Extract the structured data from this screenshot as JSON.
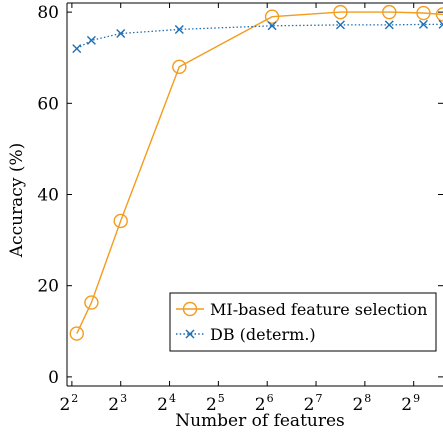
{
  "chart_data": {
    "type": "line",
    "xlabel": "Number of features",
    "ylabel": "Accuracy (%)",
    "x_scale": "log2",
    "x_tick_base": "2",
    "x_ticks": [
      2,
      3,
      4,
      5,
      6,
      7,
      8,
      9
    ],
    "xlim_log2": [
      1.9,
      9.6
    ],
    "y_ticks": [
      0,
      20,
      40,
      60,
      80
    ],
    "ylim": [
      -2,
      82
    ],
    "grid": false,
    "legend_position": "bottom-right",
    "series": [
      {
        "name": "MI-based feature selection",
        "color": "#f39c1f",
        "marker": "circle",
        "line_style": "solid",
        "x_log2": [
          2.1,
          2.4,
          3.0,
          4.2,
          6.1,
          7.5,
          8.5,
          9.2,
          9.6
        ],
        "y": [
          9.5,
          16.3,
          34.2,
          68.0,
          79.0,
          80.0,
          80.0,
          79.8,
          79.5
        ]
      },
      {
        "name": "DB (determ.)",
        "color": "#1f6fb2",
        "marker": "x",
        "line_style": "dotted",
        "x_log2": [
          2.1,
          2.4,
          3.0,
          4.2,
          6.1,
          7.5,
          8.5,
          9.2,
          9.6
        ],
        "y": [
          72.0,
          73.8,
          75.3,
          76.2,
          77.0,
          77.2,
          77.2,
          77.3,
          77.3
        ]
      }
    ]
  }
}
